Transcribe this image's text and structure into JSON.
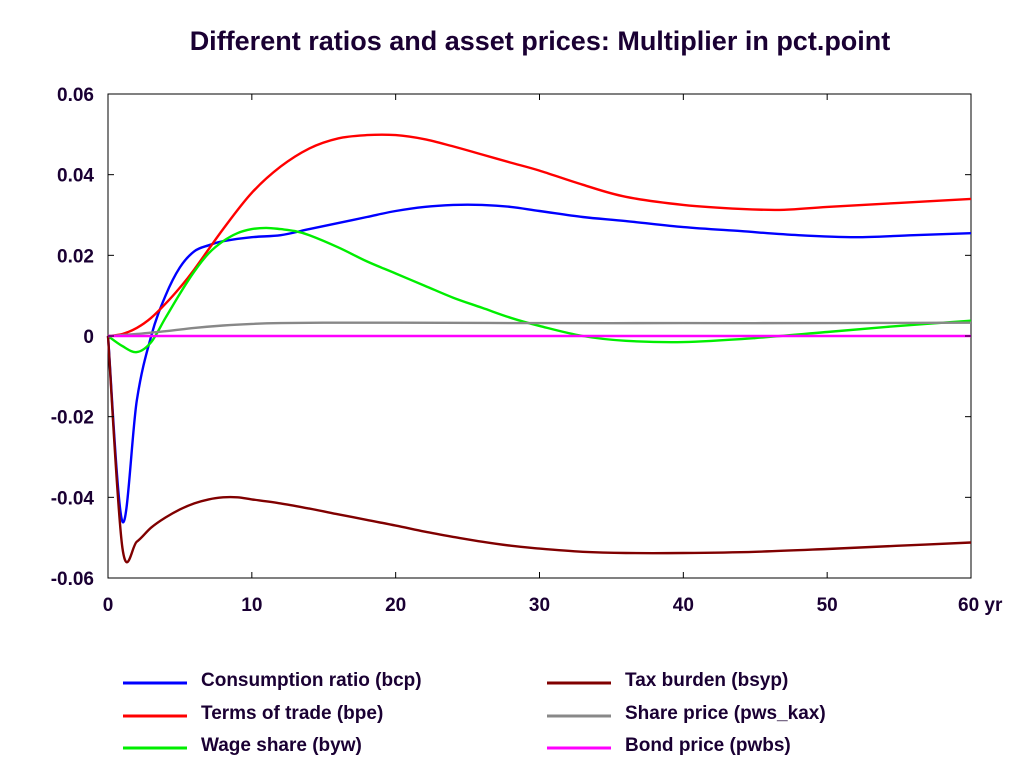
{
  "chart_data": {
    "type": "line",
    "title": "Different ratios and asset prices: Multiplier in pct.point",
    "xlabel": "",
    "ylabel": "",
    "xlim": [
      0,
      60
    ],
    "ylim": [
      -0.06,
      0.06
    ],
    "x_ticks": [
      0,
      10,
      20,
      30,
      40,
      50,
      60
    ],
    "x_tick_labels": [
      "0",
      "10",
      "20",
      "30",
      "40",
      "50",
      "60 yr"
    ],
    "y_ticks": [
      0.06,
      0.04,
      0.02,
      0,
      -0.02,
      -0.04,
      -0.06
    ],
    "y_tick_labels": [
      "0.06",
      "0.04",
      "0.02",
      "0",
      "-0.02",
      "-0.04",
      "-0.06"
    ],
    "grid": false,
    "legend_position": "bottom",
    "series": [
      {
        "name": "Consumption ratio (bcp)",
        "color": "#0000ff",
        "x": [
          0,
          1,
          2,
          3,
          4,
          5,
          6,
          7,
          8,
          10,
          12,
          14,
          16,
          18,
          20,
          22,
          24,
          26,
          28,
          30,
          33,
          36,
          40,
          44,
          48,
          52,
          56,
          60
        ],
        "y": [
          0,
          -0.046,
          -0.016,
          0.0,
          0.01,
          0.017,
          0.021,
          0.0225,
          0.0235,
          0.0245,
          0.025,
          0.0265,
          0.028,
          0.0295,
          0.031,
          0.032,
          0.0325,
          0.0325,
          0.032,
          0.031,
          0.0295,
          0.0285,
          0.027,
          0.026,
          0.025,
          0.0245,
          0.025,
          0.0255
        ]
      },
      {
        "name": "Terms of trade (bpe)",
        "color": "#ff0000",
        "x": [
          0,
          1,
          2,
          3,
          4,
          5,
          6,
          8,
          10,
          12,
          14,
          16,
          18,
          20,
          22,
          24,
          26,
          28,
          30,
          33,
          36,
          40,
          44,
          47,
          50,
          55,
          60
        ],
        "y": [
          0,
          0.0005,
          0.002,
          0.0045,
          0.008,
          0.012,
          0.0165,
          0.0265,
          0.0355,
          0.042,
          0.0465,
          0.049,
          0.0498,
          0.0498,
          0.0488,
          0.047,
          0.045,
          0.043,
          0.041,
          0.0375,
          0.0345,
          0.0325,
          0.0315,
          0.0313,
          0.032,
          0.033,
          0.034
        ]
      },
      {
        "name": "Wage share (byw)",
        "color": "#00ee00",
        "x": [
          0,
          1,
          2,
          3,
          4,
          5,
          6,
          7,
          8,
          9,
          10,
          11,
          12,
          13,
          14,
          16,
          18,
          20,
          22,
          24,
          26,
          28,
          30,
          33,
          36,
          40,
          45,
          50,
          55,
          60
        ],
        "y": [
          0,
          -0.0025,
          -0.004,
          -0.0015,
          0.0045,
          0.0105,
          0.016,
          0.0205,
          0.0235,
          0.0255,
          0.0265,
          0.0268,
          0.0265,
          0.026,
          0.025,
          0.022,
          0.0185,
          0.0155,
          0.0125,
          0.0095,
          0.007,
          0.0045,
          0.0025,
          0.0,
          -0.0012,
          -0.0015,
          -0.0005,
          0.001,
          0.0025,
          0.0038
        ]
      },
      {
        "name": "Tax burden (bsyp)",
        "color": "#800000",
        "x": [
          0,
          1,
          2,
          3,
          4,
          5,
          6,
          7,
          8,
          9,
          10,
          12,
          14,
          16,
          18,
          20,
          22,
          24,
          26,
          28,
          30,
          33,
          36,
          40,
          45,
          50,
          55,
          60
        ],
        "y": [
          0,
          -0.0525,
          -0.051,
          -0.0475,
          -0.045,
          -0.043,
          -0.0415,
          -0.0405,
          -0.04,
          -0.04,
          -0.0405,
          -0.0415,
          -0.0428,
          -0.0442,
          -0.0456,
          -0.047,
          -0.0485,
          -0.0498,
          -0.051,
          -0.052,
          -0.0527,
          -0.0535,
          -0.0538,
          -0.0538,
          -0.0535,
          -0.0528,
          -0.052,
          -0.0512
        ]
      },
      {
        "name": "Share price (pws_kax)",
        "color": "#888888",
        "x": [
          0,
          2,
          4,
          6,
          8,
          10,
          12,
          15,
          20,
          30,
          40,
          50,
          60
        ],
        "y": [
          0,
          0.0005,
          0.0012,
          0.002,
          0.0026,
          0.003,
          0.0032,
          0.0033,
          0.0033,
          0.0032,
          0.0032,
          0.0032,
          0.0033
        ]
      },
      {
        "name": "Bond price (pwbs)",
        "color": "#ff00ff",
        "x": [
          0,
          60
        ],
        "y": [
          0,
          0
        ]
      }
    ]
  }
}
